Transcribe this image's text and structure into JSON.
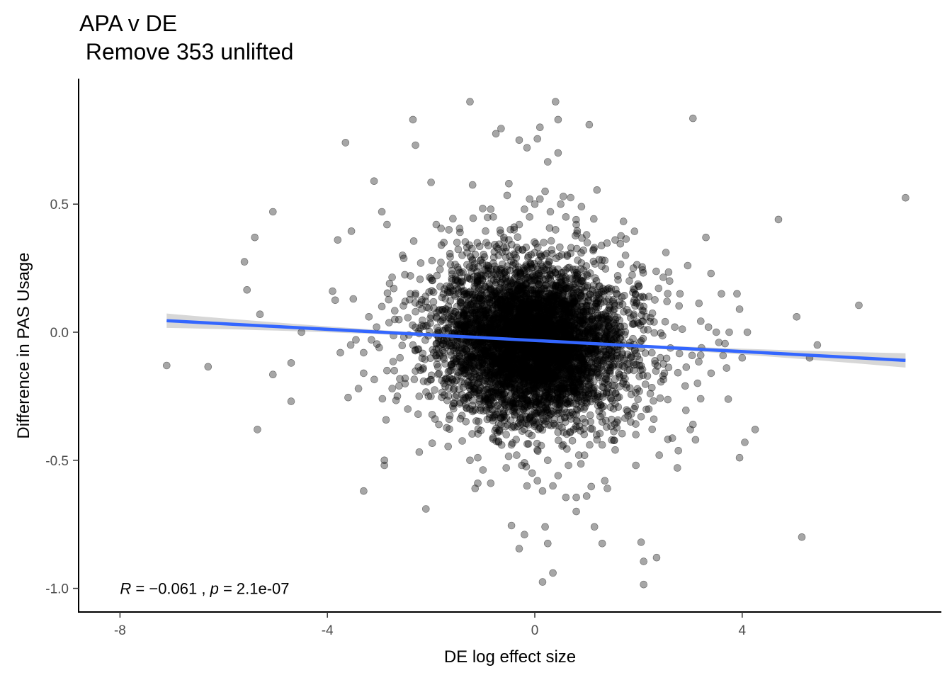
{
  "chart_data": {
    "type": "scatter",
    "title": "APA v DE",
    "subtitle": " Remove 353 unlifted",
    "xlabel": "DE log effect size",
    "ylabel": "Difference in PAS Usage",
    "xlim": [
      -8.6,
      7.7
    ],
    "ylim": [
      -1.08,
      0.97
    ],
    "x_ticks": [
      -8,
      -4,
      0,
      4
    ],
    "x_tick_labels": [
      "-8",
      "-4",
      "0",
      "4"
    ],
    "y_ticks": [
      0.5,
      0.0,
      -0.5,
      -1.0
    ],
    "y_tick_labels": [
      "0.5",
      "0.0",
      "-0.5",
      "-1.0"
    ],
    "grid": false,
    "point_color": "#000000",
    "point_opacity": 0.35,
    "fit_line": {
      "method": "lm",
      "color": "#3366FF",
      "ci_color": "#bdbdbd",
      "x": [
        -7.1,
        7.15
      ],
      "y": [
        0.045,
        -0.11
      ],
      "ci_half_width_ends": 0.028,
      "ci_half_width_center": 0.004
    },
    "annotation": {
      "R_label": "R",
      "R_text": " = −0.061 , ",
      "p_label": "p",
      "p_text": " = 2.1e-07",
      "x": -8.0,
      "y": -1.0
    },
    "points": [
      [
        -7.1,
        -0.13
      ],
      [
        -6.3,
        -0.135
      ],
      [
        -5.6,
        0.275
      ],
      [
        -5.55,
        0.165
      ],
      [
        -5.4,
        0.37
      ],
      [
        -5.3,
        0.07
      ],
      [
        -5.35,
        -0.38
      ],
      [
        -5.05,
        0.47
      ],
      [
        -5.05,
        -0.165
      ],
      [
        -4.7,
        -0.12
      ],
      [
        -4.7,
        -0.27
      ],
      [
        -4.5,
        0.0
      ],
      [
        -3.9,
        0.16
      ],
      [
        -3.85,
        0.125
      ],
      [
        -3.8,
        0.36
      ],
      [
        -3.75,
        -0.08
      ],
      [
        -3.65,
        0.74
      ],
      [
        -3.6,
        -0.255
      ],
      [
        -3.55,
        -0.05
      ],
      [
        -3.5,
        0.13
      ],
      [
        -3.4,
        -0.22
      ],
      [
        -3.3,
        -0.08
      ],
      [
        -3.3,
        -0.62
      ],
      [
        -3.1,
        0.59
      ],
      [
        -2.95,
        0.47
      ],
      [
        -2.9,
        -0.5
      ],
      [
        -2.9,
        -0.52
      ],
      [
        -2.85,
        0.42
      ],
      [
        -2.35,
        0.83
      ],
      [
        -2.3,
        0.73
      ],
      [
        -2.1,
        -0.69
      ],
      [
        -2.0,
        0.585
      ],
      [
        -1.9,
        0.42
      ],
      [
        -1.45,
        0.405
      ],
      [
        -1.25,
        0.9
      ],
      [
        -1.2,
        0.575
      ],
      [
        -1.15,
        -0.61
      ],
      [
        -1.1,
        -0.59
      ],
      [
        -0.95,
        0.395
      ],
      [
        -0.85,
        -0.59
      ],
      [
        -0.85,
        0.48
      ],
      [
        -0.8,
        0.45
      ],
      [
        -0.75,
        0.775
      ],
      [
        -0.65,
        0.795
      ],
      [
        -0.5,
        0.58
      ],
      [
        -0.45,
        -0.755
      ],
      [
        -0.3,
        0.75
      ],
      [
        -0.3,
        -0.845
      ],
      [
        -0.2,
        -0.79
      ],
      [
        -0.2,
        -0.51
      ],
      [
        -0.15,
        0.72
      ],
      [
        -0.1,
        0.52
      ],
      [
        0.05,
        0.755
      ],
      [
        0.1,
        0.8
      ],
      [
        0.15,
        -0.975
      ],
      [
        0.2,
        -0.76
      ],
      [
        0.25,
        -0.825
      ],
      [
        0.25,
        0.665
      ],
      [
        0.35,
        -0.94
      ],
      [
        0.4,
        0.9
      ],
      [
        0.45,
        0.83
      ],
      [
        0.45,
        0.7
      ],
      [
        0.55,
        0.53
      ],
      [
        0.6,
        -0.645
      ],
      [
        0.8,
        -0.645
      ],
      [
        0.8,
        -0.7
      ],
      [
        0.9,
        0.49
      ],
      [
        1.0,
        -0.64
      ],
      [
        1.05,
        0.81
      ],
      [
        1.15,
        -0.76
      ],
      [
        1.2,
        0.555
      ],
      [
        1.3,
        -0.825
      ],
      [
        1.35,
        -0.58
      ],
      [
        1.4,
        -0.61
      ],
      [
        1.55,
        0.36
      ],
      [
        1.65,
        0.345
      ],
      [
        1.95,
        -0.52
      ],
      [
        2.05,
        -0.82
      ],
      [
        2.1,
        -0.895
      ],
      [
        2.1,
        -0.985
      ],
      [
        2.35,
        -0.88
      ],
      [
        2.4,
        -0.48
      ],
      [
        2.75,
        -0.53
      ],
      [
        2.95,
        0.26
      ],
      [
        3.05,
        0.835
      ],
      [
        3.3,
        0.37
      ],
      [
        3.7,
        -0.14
      ],
      [
        3.95,
        -0.49
      ],
      [
        4.05,
        -0.43
      ],
      [
        4.25,
        -0.38
      ],
      [
        4.7,
        0.44
      ],
      [
        5.05,
        0.06
      ],
      [
        5.15,
        -0.8
      ],
      [
        6.25,
        0.105
      ],
      [
        7.15,
        0.525
      ],
      [
        5.45,
        -0.05
      ],
      [
        5.3,
        -0.1
      ],
      [
        4.1,
        0.0
      ],
      [
        3.75,
        0.0
      ],
      [
        3.55,
        -0.04
      ],
      [
        3.4,
        -0.16
      ],
      [
        3.35,
        0.02
      ],
      [
        3.2,
        -0.26
      ],
      [
        3.05,
        -0.36
      ],
      [
        3.0,
        -0.38
      ],
      [
        3.1,
        -0.42
      ],
      [
        2.9,
        -0.21
      ],
      [
        2.8,
        0.15
      ],
      [
        2.6,
        0.2
      ],
      [
        2.55,
        0.12
      ],
      [
        2.3,
        0.04
      ],
      [
        2.2,
        -0.3
      ],
      [
        2.1,
        0.1
      ],
      [
        2.0,
        0.18
      ],
      [
        1.95,
        -0.4
      ],
      [
        1.9,
        0.25
      ],
      [
        1.85,
        -0.35
      ],
      [
        1.75,
        0.3
      ],
      [
        1.7,
        -0.2
      ],
      [
        1.6,
        0.22
      ],
      [
        1.55,
        -0.28
      ],
      [
        1.5,
        0.12
      ],
      [
        1.45,
        -0.15
      ],
      [
        1.4,
        0.05
      ],
      [
        1.35,
        0.28
      ],
      [
        1.3,
        -0.35
      ],
      [
        1.25,
        0.18
      ],
      [
        1.2,
        -0.42
      ],
      [
        1.15,
        0.33
      ],
      [
        1.1,
        -0.22
      ],
      [
        1.05,
        0.08
      ],
      [
        1.0,
        0.38
      ],
      [
        0.95,
        -0.3
      ],
      [
        0.9,
        0.27
      ],
      [
        0.85,
        -0.48
      ],
      [
        0.8,
        0.42
      ],
      [
        0.75,
        -0.38
      ],
      [
        0.7,
        0.33
      ],
      [
        0.65,
        -0.52
      ],
      [
        0.6,
        0.45
      ],
      [
        0.55,
        -0.44
      ],
      [
        0.5,
        0.5
      ],
      [
        0.45,
        -0.56
      ],
      [
        0.4,
        0.4
      ],
      [
        0.35,
        -0.6
      ],
      [
        0.3,
        0.47
      ],
      [
        0.25,
        -0.5
      ],
      [
        0.2,
        0.55
      ],
      [
        0.15,
        -0.62
      ],
      [
        0.1,
        0.52
      ],
      [
        0.05,
        -0.58
      ],
      [
        0.0,
        0.5
      ],
      [
        -0.05,
        -0.55
      ],
      [
        -0.1,
        0.45
      ],
      [
        -0.15,
        -0.6
      ],
      [
        -0.2,
        0.48
      ],
      [
        -0.25,
        -0.52
      ],
      [
        -0.3,
        0.42
      ],
      [
        -0.35,
        -0.48
      ],
      [
        -0.4,
        0.4
      ],
      [
        -0.45,
        -0.44
      ],
      [
        -0.5,
        0.36
      ],
      [
        -0.55,
        -0.4
      ],
      [
        -0.6,
        0.33
      ],
      [
        -0.65,
        -0.36
      ],
      [
        -0.7,
        0.3
      ],
      [
        -0.75,
        -0.32
      ],
      [
        -0.8,
        0.27
      ],
      [
        -0.85,
        -0.3
      ],
      [
        -0.9,
        0.24
      ],
      [
        -0.95,
        -0.26
      ],
      [
        -1.0,
        0.22
      ],
      [
        -1.05,
        -0.24
      ],
      [
        -1.1,
        0.2
      ],
      [
        -1.15,
        -0.22
      ],
      [
        -1.2,
        0.28
      ],
      [
        -1.25,
        -0.3
      ],
      [
        -1.3,
        0.14
      ],
      [
        -1.35,
        -0.16
      ],
      [
        -1.4,
        0.3
      ],
      [
        -1.45,
        -0.28
      ],
      [
        -1.5,
        0.1
      ],
      [
        -1.55,
        -0.12
      ],
      [
        -1.6,
        0.24
      ],
      [
        -1.65,
        -0.34
      ],
      [
        -1.7,
        0.18
      ],
      [
        -1.75,
        -0.2
      ],
      [
        -1.8,
        0.34
      ],
      [
        -1.85,
        -0.36
      ],
      [
        -1.9,
        0.06
      ],
      [
        -1.95,
        -0.08
      ],
      [
        -2.0,
        0.21
      ],
      [
        -2.05,
        -0.25
      ],
      [
        -2.1,
        0.12
      ],
      [
        -2.15,
        -0.14
      ],
      [
        -2.2,
        0.27
      ],
      [
        -2.25,
        -0.32
      ],
      [
        -2.3,
        0.08
      ],
      [
        -2.35,
        -0.05
      ],
      [
        -2.4,
        0.15
      ],
      [
        -2.5,
        -0.18
      ],
      [
        -2.55,
        0.3
      ],
      [
        -2.6,
        -0.1
      ],
      [
        -2.7,
        0.05
      ],
      [
        -2.75,
        -0.22
      ],
      [
        -2.8,
        0.19
      ],
      [
        -2.85,
        -0.15
      ],
      [
        -2.95,
        0.1
      ],
      [
        -3.0,
        -0.06
      ],
      [
        -3.05,
        0.02
      ],
      [
        -3.15,
        -0.03
      ],
      [
        -3.2,
        0.06
      ],
      [
        -2.45,
        -0.3
      ],
      [
        -2.5,
        0.12
      ],
      [
        -1.25,
        -0.5
      ],
      [
        -1.1,
        -0.49
      ],
      [
        -0.7,
        -0.425
      ],
      [
        -0.55,
        -0.53
      ],
      [
        1.3,
        -0.44
      ],
      [
        1.55,
        -0.46
      ],
      [
        2.05,
        -0.33
      ],
      [
        2.5,
        -0.16
      ],
      [
        2.7,
        0.02
      ],
      [
        3.2,
        -0.09
      ],
      [
        3.5,
        0.0
      ],
      [
        3.9,
        0.15
      ],
      [
        3.95,
        0.09
      ],
      [
        4.0,
        -0.1
      ],
      [
        3.6,
        0.15
      ],
      [
        -3.3,
        -0.16
      ],
      [
        -3.45,
        -0.03
      ],
      [
        -2.65,
        -0.25
      ],
      [
        -2.4,
        0.22
      ],
      [
        -1.5,
        0.35
      ]
    ]
  }
}
